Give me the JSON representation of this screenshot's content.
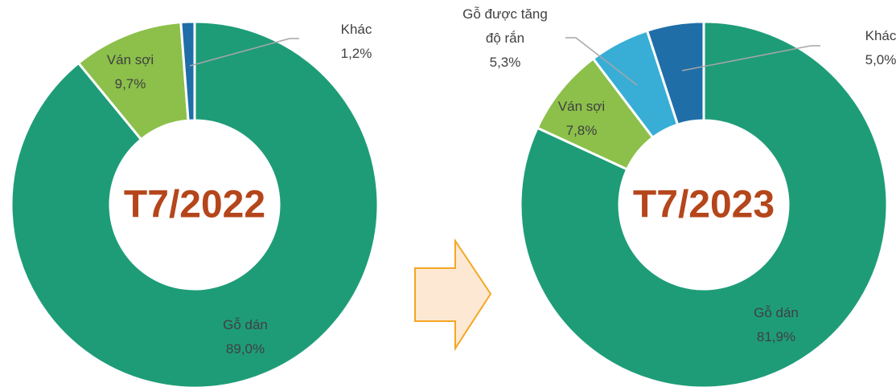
{
  "chart_data": [
    {
      "type": "donut",
      "title": "T7/2022",
      "categories": [
        "Gỗ dán",
        "Ván sợi",
        "Khác"
      ],
      "values": [
        89.0,
        9.7,
        1.2
      ],
      "value_labels": [
        "89,0%",
        "9,7%",
        "1,2%"
      ],
      "colors": [
        "#1e9c78",
        "#8cc04a",
        "#1f6ea8"
      ]
    },
    {
      "type": "donut",
      "title": "T7/2023",
      "categories": [
        "Gỗ dán",
        "Ván sợi",
        "Gỗ được tăng độ rắn",
        "Khác"
      ],
      "values": [
        81.9,
        7.8,
        5.3,
        5.0
      ],
      "value_labels": [
        "81,9%",
        "7,8%",
        "5,3%",
        "5,0%"
      ],
      "colors": [
        "#1e9c78",
        "#8cc04a",
        "#38aed6",
        "#1f6ea8"
      ]
    }
  ]
}
